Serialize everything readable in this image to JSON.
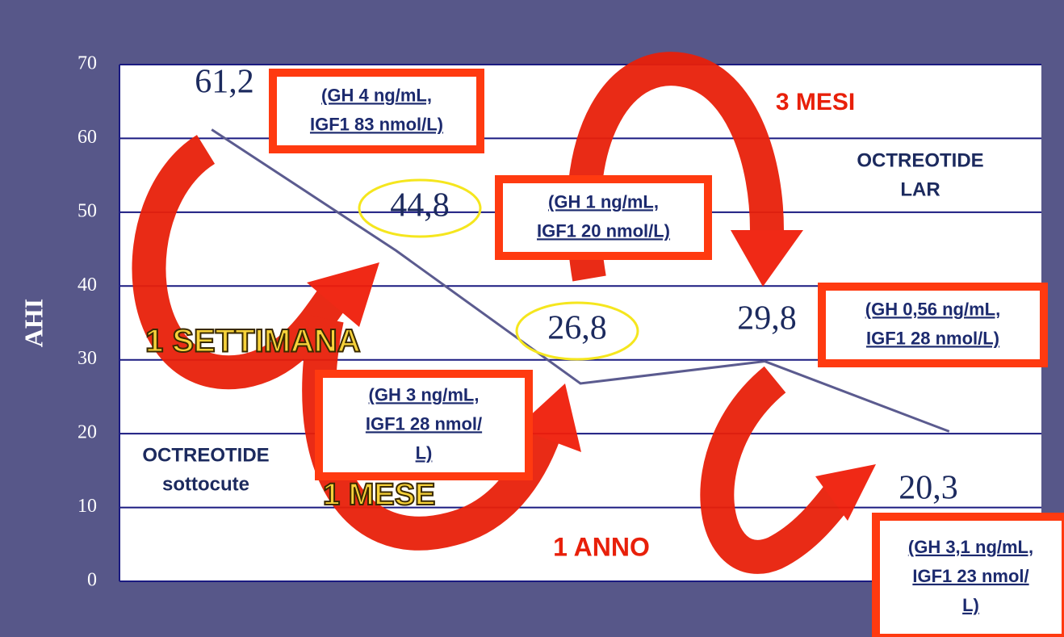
{
  "chart_data": {
    "type": "line",
    "y_label": "AHI",
    "categories": [
      null,
      null,
      null,
      null,
      null
    ],
    "series": [
      {
        "name": null,
        "color": "#5b5b8f",
        "values": [
          61.2,
          44.8,
          26.8,
          29.8,
          20.3
        ],
        "value_labels": [
          "61,2",
          "44,8",
          "26,8",
          "29,8",
          "20,3"
        ]
      }
    ],
    "ylim": [
      0,
      70
    ],
    "yticks": [
      0,
      10,
      20,
      30,
      40,
      50,
      60,
      70
    ],
    "grid": true,
    "boxes": [
      [
        "(GH 4 ng/mL,",
        "IGF1 83 nmol/L)"
      ],
      [
        "(GH 1 ng/mL,",
        "IGF1 20 nmol/L)"
      ],
      [
        "(GH 0,56 ng/mL,",
        "IGF1 28 nmol/L)"
      ],
      [
        "(GH 3 ng/mL,",
        "IGF1 28 nmol/",
        "L)"
      ],
      [
        "(GH 3,1 ng/mL,",
        "IGF1 23 nmol/",
        "L)"
      ]
    ],
    "arrow_labels": [
      "1 SETTIMANA",
      "1 MESE",
      "3 MESI",
      "1 ANNO"
    ],
    "drugs": [
      [
        "OCTREOTIDE",
        "LAR"
      ],
      [
        "OCTREOTIDE",
        "sottocute"
      ]
    ]
  }
}
